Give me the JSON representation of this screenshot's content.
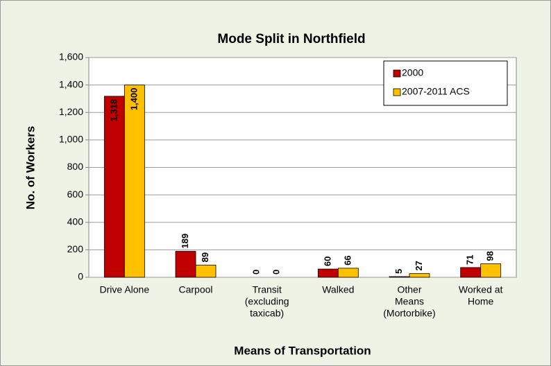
{
  "chart_data": {
    "type": "bar",
    "title": "Mode Split in Northfield",
    "x_label": "Means of Transportation",
    "y_label": "No. of Workers",
    "categories": [
      [
        "Drive Alone"
      ],
      [
        "Carpool"
      ],
      [
        "Transit",
        "(excluding",
        "taxicab)"
      ],
      [
        "Walked"
      ],
      [
        "Other",
        "Means",
        "(Mortorbike)"
      ],
      [
        "Worked at",
        "Home"
      ]
    ],
    "series": [
      {
        "name": "2000",
        "color": "#c00000",
        "values": [
          1318,
          189,
          0,
          60,
          5,
          71
        ],
        "value_labels": [
          "1,318",
          "189",
          "0",
          "60",
          "5",
          "71"
        ]
      },
      {
        "name": "2007-2011 ACS",
        "color": "#ffc000",
        "values": [
          1400,
          89,
          0,
          66,
          27,
          98
        ],
        "value_labels": [
          "1,400",
          "89",
          "0",
          "66",
          "27",
          "98"
        ]
      }
    ],
    "ylim": [
      0,
      1600
    ],
    "yticks": [
      0,
      200,
      400,
      600,
      800,
      {
        "value": 1000,
        "label": "1,000"
      },
      {
        "value": 1200,
        "label": "1,200"
      },
      {
        "value": 1400,
        "label": "1,400"
      },
      {
        "value": 1600,
        "label": "1,600"
      }
    ],
    "grid": true,
    "legend": "top-right"
  }
}
